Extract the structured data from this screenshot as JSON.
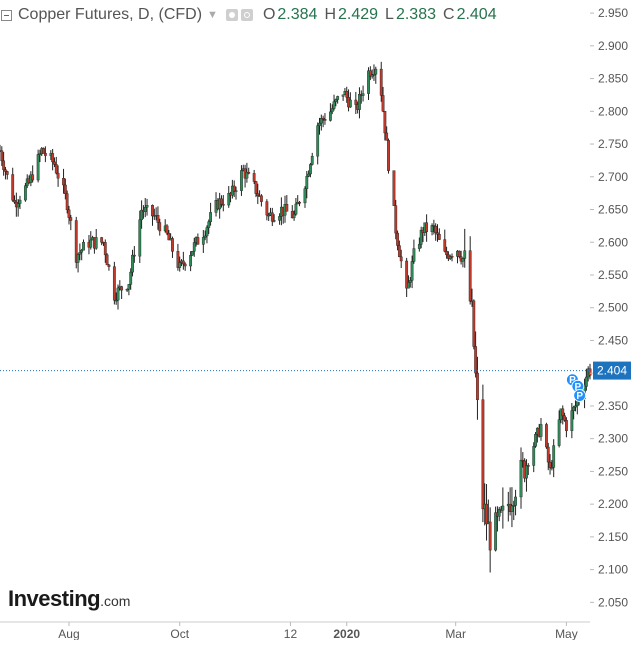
{
  "header": {
    "title": "Copper Futures, D, (CFD)",
    "open_label": "O",
    "open": "2.384",
    "high_label": "H",
    "high": "2.429",
    "low_label": "L",
    "low": "2.383",
    "close_label": "C",
    "close": "2.404"
  },
  "logo": {
    "main": "Investing",
    "suffix": ".com"
  },
  "colors": {
    "up": "#2e8b57",
    "down": "#c0392b",
    "wick": "#222222",
    "last_price": "#1e73be",
    "marker": "#1e90ff",
    "axis_text": "#555555"
  },
  "markers": [
    {
      "label": "P",
      "date": "2020-05-01",
      "price": 2.39
    },
    {
      "label": "P",
      "date": "2020-05-04",
      "price": 2.38
    },
    {
      "label": "P",
      "date": "2020-05-05",
      "price": 2.366
    }
  ],
  "chart_data": {
    "type": "candlestick",
    "title": "Copper Futures, D, (CFD)",
    "xlabel": "",
    "ylabel": "",
    "xlim": [
      "2019-06-24",
      "2020-05-14"
    ],
    "ylim": [
      2.02,
      2.97
    ],
    "y_ticks": [
      "2.050",
      "2.100",
      "2.150",
      "2.200",
      "2.250",
      "2.300",
      "2.350",
      "2.400",
      "2.450",
      "2.500",
      "2.550",
      "2.600",
      "2.650",
      "2.700",
      "2.750",
      "2.800",
      "2.850",
      "2.900",
      "2.950"
    ],
    "x_ticks": [
      {
        "label": "Aug",
        "date": "2019-08-01"
      },
      {
        "label": "Oct",
        "date": "2019-10-01"
      },
      {
        "label": "12",
        "date": "2019-12-01"
      },
      {
        "label": "2020",
        "date": "2020-01-01"
      },
      {
        "label": "Mar",
        "date": "2020-03-01"
      },
      {
        "label": "May",
        "date": "2020-05-01"
      }
    ],
    "last_price": 2.404,
    "grid": false,
    "anchors": [
      [
        "2019-06-24",
        2.74
      ],
      [
        "2019-07-02",
        2.66
      ],
      [
        "2019-07-10",
        2.69
      ],
      [
        "2019-07-17",
        2.74
      ],
      [
        "2019-07-24",
        2.72
      ],
      [
        "2019-07-31",
        2.66
      ],
      [
        "2019-08-05",
        2.58
      ],
      [
        "2019-08-12",
        2.6
      ],
      [
        "2019-08-20",
        2.6
      ],
      [
        "2019-08-26",
        2.52
      ],
      [
        "2019-09-03",
        2.54
      ],
      [
        "2019-09-10",
        2.65
      ],
      [
        "2019-09-17",
        2.64
      ],
      [
        "2019-09-24",
        2.61
      ],
      [
        "2019-10-01",
        2.56
      ],
      [
        "2019-10-08",
        2.59
      ],
      [
        "2019-10-15",
        2.62
      ],
      [
        "2019-10-22",
        2.66
      ],
      [
        "2019-10-29",
        2.67
      ],
      [
        "2019-11-05",
        2.71
      ],
      [
        "2019-11-12",
        2.68
      ],
      [
        "2019-11-19",
        2.64
      ],
      [
        "2019-11-26",
        2.65
      ],
      [
        "2019-12-03",
        2.64
      ],
      [
        "2019-12-10",
        2.7
      ],
      [
        "2019-12-16",
        2.78
      ],
      [
        "2019-12-23",
        2.8
      ],
      [
        "2019-12-30",
        2.83
      ],
      [
        "2020-01-06",
        2.8
      ],
      [
        "2020-01-13",
        2.86
      ],
      [
        "2020-01-17",
        2.87
      ],
      [
        "2020-01-20",
        2.83
      ],
      [
        "2020-01-24",
        2.72
      ],
      [
        "2020-01-28",
        2.62
      ],
      [
        "2020-02-03",
        2.52
      ],
      [
        "2020-02-07",
        2.58
      ],
      [
        "2020-02-12",
        2.62
      ],
      [
        "2020-02-18",
        2.62
      ],
      [
        "2020-02-24",
        2.58
      ],
      [
        "2020-03-02",
        2.59
      ],
      [
        "2020-03-06",
        2.57
      ],
      [
        "2020-03-10",
        2.49
      ],
      [
        "2020-03-16",
        2.2
      ],
      [
        "2020-03-20",
        2.15
      ],
      [
        "2020-03-27",
        2.18
      ],
      [
        "2020-04-03",
        2.23
      ],
      [
        "2020-04-10",
        2.27
      ],
      [
        "2020-04-17",
        2.32
      ],
      [
        "2020-04-22",
        2.25
      ],
      [
        "2020-04-28",
        2.34
      ],
      [
        "2020-05-01",
        2.32
      ],
      [
        "2020-05-06",
        2.35
      ],
      [
        "2020-05-13",
        2.404
      ]
    ]
  }
}
